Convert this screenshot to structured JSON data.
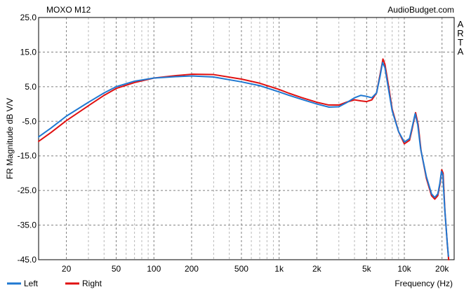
{
  "chart_data": {
    "type": "line",
    "title": "MOXO M12",
    "watermark": "AudioBudget.com",
    "side_label": [
      "A",
      "R",
      "T",
      "A"
    ],
    "xlabel": "Frequency (Hz)",
    "ylabel": "FR Magnitude dB V/V",
    "x_scale": "log",
    "xlim": [
      12,
      25000
    ],
    "ylim": [
      -45,
      25
    ],
    "x_ticks": [
      {
        "value": 20,
        "label": "20"
      },
      {
        "value": 50,
        "label": "50"
      },
      {
        "value": 100,
        "label": "100"
      },
      {
        "value": 200,
        "label": "200"
      },
      {
        "value": 500,
        "label": "500"
      },
      {
        "value": 1000,
        "label": "1k"
      },
      {
        "value": 2000,
        "label": "2k"
      },
      {
        "value": 5000,
        "label": "5k"
      },
      {
        "value": 10000,
        "label": "10k"
      },
      {
        "value": 20000,
        "label": "20k"
      }
    ],
    "y_ticks": [
      {
        "value": 25,
        "label": "25.0"
      },
      {
        "value": 15,
        "label": "15.0"
      },
      {
        "value": 5,
        "label": "5.0"
      },
      {
        "value": -5,
        "label": "-5.0"
      },
      {
        "value": -15,
        "label": "-15.0"
      },
      {
        "value": -25,
        "label": "-25.0"
      },
      {
        "value": -35,
        "label": "-35.0"
      },
      {
        "value": -45,
        "label": "-45.0"
      }
    ],
    "grid": true,
    "legend_position": "bottom-left",
    "series": [
      {
        "name": "Left",
        "color": "#1f78d1",
        "points": [
          [
            12,
            -9.5
          ],
          [
            15,
            -7
          ],
          [
            20,
            -3.5
          ],
          [
            30,
            0.5
          ],
          [
            40,
            3.2
          ],
          [
            50,
            5
          ],
          [
            70,
            6.6
          ],
          [
            100,
            7.5
          ],
          [
            150,
            7.9
          ],
          [
            200,
            8.1
          ],
          [
            300,
            7.8
          ],
          [
            500,
            6.4
          ],
          [
            700,
            5.3
          ],
          [
            1000,
            3.5
          ],
          [
            1200,
            2.5
          ],
          [
            1500,
            1.4
          ],
          [
            2000,
            0
          ],
          [
            2500,
            -0.9
          ],
          [
            3000,
            -0.8
          ],
          [
            3500,
            0.5
          ],
          [
            4000,
            1.8
          ],
          [
            4500,
            2.5
          ],
          [
            5000,
            2.2
          ],
          [
            5500,
            1.8
          ],
          [
            6000,
            3.2
          ],
          [
            6400,
            8
          ],
          [
            6700,
            12
          ],
          [
            7000,
            10.5
          ],
          [
            7500,
            4
          ],
          [
            8000,
            -2
          ],
          [
            9000,
            -8
          ],
          [
            10000,
            -11
          ],
          [
            11000,
            -10
          ],
          [
            11500,
            -7
          ],
          [
            12200,
            -2.8
          ],
          [
            12800,
            -6
          ],
          [
            13500,
            -13
          ],
          [
            15000,
            -21
          ],
          [
            16500,
            -26
          ],
          [
            17500,
            -27
          ],
          [
            18500,
            -26
          ],
          [
            19200,
            -23
          ],
          [
            19800,
            -19.5
          ],
          [
            20300,
            -20.5
          ],
          [
            21000,
            -30
          ],
          [
            22000,
            -40
          ],
          [
            22500,
            -44
          ]
        ]
      },
      {
        "name": "Right",
        "color": "#e01010",
        "points": [
          [
            12,
            -10.8
          ],
          [
            15,
            -8.3
          ],
          [
            20,
            -4.8
          ],
          [
            30,
            -0.5
          ],
          [
            40,
            2.5
          ],
          [
            50,
            4.5
          ],
          [
            70,
            6.2
          ],
          [
            100,
            7.5
          ],
          [
            150,
            8.2
          ],
          [
            200,
            8.6
          ],
          [
            300,
            8.5
          ],
          [
            500,
            7.2
          ],
          [
            700,
            6
          ],
          [
            1000,
            4.2
          ],
          [
            1200,
            3.1
          ],
          [
            1500,
            1.9
          ],
          [
            2000,
            0.5
          ],
          [
            2500,
            -0.3
          ],
          [
            3000,
            -0.3
          ],
          [
            3500,
            0.6
          ],
          [
            4000,
            1.2
          ],
          [
            4500,
            0.9
          ],
          [
            5000,
            0.7
          ],
          [
            5500,
            1.2
          ],
          [
            6000,
            3.2
          ],
          [
            6400,
            8.5
          ],
          [
            6750,
            13
          ],
          [
            7000,
            11.5
          ],
          [
            7500,
            5
          ],
          [
            8000,
            -1.5
          ],
          [
            9000,
            -8
          ],
          [
            10000,
            -11.5
          ],
          [
            11000,
            -10.5
          ],
          [
            11500,
            -7.5
          ],
          [
            12300,
            -2.5
          ],
          [
            12900,
            -6
          ],
          [
            13600,
            -13.5
          ],
          [
            15000,
            -21.5
          ],
          [
            16500,
            -26.5
          ],
          [
            17500,
            -27.5
          ],
          [
            18500,
            -26.5
          ],
          [
            19300,
            -23
          ],
          [
            19900,
            -19
          ],
          [
            20400,
            -20
          ],
          [
            21100,
            -31
          ],
          [
            22100,
            -41
          ],
          [
            22600,
            -45
          ]
        ]
      }
    ]
  }
}
